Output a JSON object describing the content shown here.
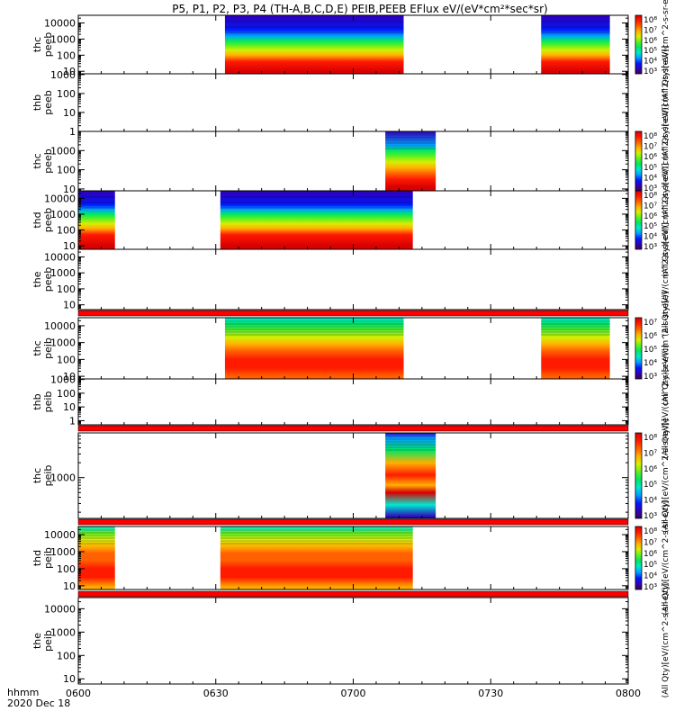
{
  "title": "P5, P1, P2, P3, P4 (TH-A,B,C,D,E) PEIB,PEEB EFlux eV/(eV*cm²*sec*sr)",
  "footer": {
    "left_label": "hhmm",
    "date_label": "2020 Dec 18"
  },
  "x_axis": {
    "range": [
      0,
      120
    ],
    "ticks": [
      {
        "value": 0,
        "label": "0600"
      },
      {
        "value": 30,
        "label": "0630"
      },
      {
        "value": 60,
        "label": "0700"
      },
      {
        "value": 90,
        "label": "0730"
      },
      {
        "value": 120,
        "label": "0800"
      }
    ]
  },
  "colors": {
    "spectrum": [
      "#3a0059",
      "#3000b8",
      "#0018ff",
      "#00a0ff",
      "#00e8d0",
      "#00e860",
      "#60f020",
      "#d8ee00",
      "#ffb000",
      "#ff6000",
      "#ff1a00",
      "#d80000"
    ],
    "fill_line": "#ff0000"
  },
  "chart_data": {
    "type": "heatmap",
    "xunit": "minutes after 06:00 UT",
    "panels": [
      {
        "id": "thc-peeb",
        "probe": "thc",
        "quantity": "peeb",
        "yscale": "log",
        "ylim": [
          7,
          30000
        ],
        "yticks": [
          "10",
          "100",
          "1000",
          "10000"
        ],
        "blocks": [
          [
            32,
            71
          ],
          [
            101,
            116
          ]
        ],
        "profile": [
          [
            1.0,
            11
          ],
          [
            1.6,
            10
          ],
          [
            2.0,
            8
          ],
          [
            2.3,
            7
          ],
          [
            2.6,
            6
          ],
          [
            2.9,
            5
          ],
          [
            3.2,
            3
          ],
          [
            3.6,
            2
          ],
          [
            4.6,
            1
          ]
        ],
        "colorbar": {
          "label": "(All Qty)[eV/(cm^2-s-sr-eV)]",
          "ticks": [
            "10⁵",
            "10⁶",
            "10⁷",
            "10⁸"
          ],
          "ticks_low": [
            "10³",
            "10⁴"
          ]
        }
      },
      {
        "id": "thb-peeb",
        "probe": "thb",
        "quantity": "peeb",
        "yscale": "log",
        "ylim": [
          1,
          1100
        ],
        "yticks": [
          "1",
          "10",
          "100",
          "1000"
        ],
        "blocks": [],
        "profile": [],
        "colorbar": {
          "label": "(All Qty)[eV/(cm^2-s-sr-eV)]",
          "ticks": [],
          "ticks_low": []
        }
      },
      {
        "id": "thc-peeb-2",
        "probe": "thc",
        "quantity": "peeb",
        "yscale": "log",
        "ylim": [
          8,
          10000
        ],
        "yticks": [
          "10",
          "100",
          "1000"
        ],
        "blocks": [
          [
            67,
            78
          ]
        ],
        "profile": [
          [
            1.1,
            11
          ],
          [
            1.5,
            10
          ],
          [
            1.8,
            9
          ],
          [
            2.1,
            8
          ],
          [
            2.4,
            7
          ],
          [
            2.7,
            6
          ],
          [
            3.0,
            5
          ],
          [
            3.3,
            3
          ],
          [
            4.0,
            1
          ]
        ],
        "colorbar": {
          "label": "(All Qty)[eV/(cm^2-s-sr-eV)]",
          "ticks": [
            "10⁵",
            "10⁶",
            "10⁷",
            "10⁸"
          ],
          "ticks_low": [
            "10³",
            "10⁴"
          ]
        }
      },
      {
        "id": "thd-peeb",
        "probe": "thd",
        "quantity": "peeb",
        "yscale": "log",
        "ylim": [
          6,
          30000
        ],
        "yticks": [
          "10",
          "100",
          "1000",
          "10000"
        ],
        "blocks": [
          [
            0,
            8
          ],
          [
            31,
            73
          ]
        ],
        "profile": [
          [
            1.0,
            11
          ],
          [
            1.7,
            10
          ],
          [
            2.1,
            8
          ],
          [
            2.4,
            7
          ],
          [
            2.7,
            6
          ],
          [
            3.0,
            5
          ],
          [
            3.3,
            3
          ],
          [
            3.6,
            2
          ],
          [
            4.5,
            1
          ]
        ],
        "colorbar": {
          "label": "(All Qty)[eV/(cm^2-s-sr-eV)]",
          "ticks": [
            "10⁵",
            "10⁶",
            "10⁷",
            "10⁸"
          ],
          "ticks_low": [
            "10³",
            "10⁴"
          ]
        }
      },
      {
        "id": "the-peeb",
        "probe": "the",
        "quantity": "peeb",
        "yscale": "log",
        "ylim": [
          5,
          30000
        ],
        "yticks": [
          "10",
          "100",
          "1000",
          "10000"
        ],
        "blocks": [],
        "profile": [],
        "colorbar": {
          "label": "(All Qty)[eV/(cm^2-s-sr-eV)]",
          "ticks": [],
          "ticks_low": []
        }
      },
      {
        "id": "thc-peib",
        "probe": "thc",
        "quantity": "peib",
        "yscale": "log",
        "ylim": [
          7,
          30000
        ],
        "yticks": [
          "10",
          "100",
          "1000",
          "10000"
        ],
        "blocks": [
          [
            32,
            71
          ],
          [
            101,
            116
          ]
        ],
        "profile": [
          [
            1.0,
            9
          ],
          [
            1.5,
            10
          ],
          [
            2.0,
            10
          ],
          [
            2.5,
            9
          ],
          [
            2.9,
            8
          ],
          [
            3.3,
            7
          ],
          [
            3.7,
            6
          ],
          [
            4.1,
            5
          ],
          [
            4.6,
            4
          ]
        ],
        "colorbar": {
          "label": "(All Qty)[eV/(cm^2-s-sr-eV)]",
          "ticks": [
            "10³",
            "10⁴",
            "10⁵",
            "10⁶",
            "10⁷"
          ],
          "ticks_low": []
        }
      },
      {
        "id": "thb-peib",
        "probe": "thb",
        "quantity": "peib",
        "yscale": "log",
        "ylim": [
          0.5,
          1100
        ],
        "yticks": [
          "1",
          "10",
          "100",
          "1000"
        ],
        "blocks": [],
        "profile": [],
        "colorbar": {
          "label": "(All Qty)[eV/(cm^2-s-sr-eV)]",
          "ticks": [],
          "ticks_low": []
        }
      },
      {
        "id": "thc-peib-2",
        "probe": "thc",
        "quantity": "peib",
        "yscale": "log",
        "ylim": [
          150,
          8000
        ],
        "yticks": [
          "1000"
        ],
        "blocks": [
          [
            67,
            78
          ]
        ],
        "profile": [
          [
            2.2,
            1
          ],
          [
            2.45,
            4
          ],
          [
            2.7,
            11
          ],
          [
            2.85,
            8
          ],
          [
            3.05,
            10
          ],
          [
            3.3,
            8
          ],
          [
            3.55,
            5
          ],
          [
            3.8,
            3
          ],
          [
            4.0,
            1
          ]
        ],
        "colorbar": {
          "label": "(All Qty)[eV/(cm^2-s-sr-eV)]",
          "ticks": [
            "10⁵",
            "10⁶",
            "10⁷",
            "10⁸"
          ],
          "ticks_low": [
            "10³",
            "10⁴"
          ]
        }
      },
      {
        "id": "thd-peib",
        "probe": "thd",
        "quantity": "peib",
        "yscale": "log",
        "ylim": [
          6,
          30000
        ],
        "yticks": [
          "10",
          "100",
          "1000",
          "10000"
        ],
        "blocks": [
          [
            0,
            8
          ],
          [
            31,
            73
          ]
        ],
        "profile": [
          [
            0.9,
            8
          ],
          [
            1.5,
            10
          ],
          [
            2.0,
            10
          ],
          [
            2.5,
            9
          ],
          [
            2.9,
            9
          ],
          [
            3.3,
            8
          ],
          [
            3.7,
            7
          ],
          [
            4.1,
            6
          ],
          [
            4.5,
            4
          ]
        ],
        "colorbar": {
          "label": "(All Qty)[eV/(cm^2-s-sr-eV)]",
          "ticks": [
            "10⁵",
            "10⁶",
            "10⁷",
            "10⁸"
          ],
          "ticks_low": [
            "10³",
            "10⁴"
          ]
        }
      },
      {
        "id": "the-peib",
        "probe": "the",
        "quantity": "peib",
        "yscale": "log",
        "ylim": [
          6,
          30000
        ],
        "yticks": [
          "10",
          "100",
          "1000",
          "10000"
        ],
        "blocks": [],
        "profile": [],
        "colorbar": {
          "label": "(All Qty)[eV/(cm^2-s-sr-eV)]",
          "ticks": [],
          "ticks_low": []
        }
      }
    ],
    "fill_lines_after": [
      "the-peeb",
      "thb-peib",
      "thc-peib-2",
      "thd-peib"
    ]
  }
}
